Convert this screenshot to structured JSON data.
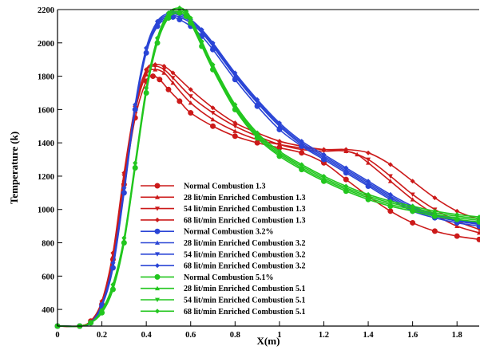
{
  "chart_data": {
    "type": "line",
    "title": "",
    "xlabel": "X(m)",
    "ylabel": "Temperature (k)",
    "xlim": [
      0,
      1.9
    ],
    "ylim": [
      300,
      2200
    ],
    "x_ticks": [
      0,
      0.2,
      0.4,
      0.6,
      0.8,
      1,
      1.2,
      1.4,
      1.6,
      1.8
    ],
    "x_tick_labels": [
      "0",
      "0.2",
      "0.4",
      "0.6",
      "0.8",
      "1",
      "1.2",
      "1.4",
      "1.6",
      "1.8"
    ],
    "y_ticks": [
      400,
      600,
      800,
      1000,
      1200,
      1400,
      1600,
      1800,
      2000,
      2200
    ],
    "y_tick_labels": [
      "400",
      "600",
      "800",
      "1000",
      "1200",
      "1400",
      "1600",
      "1800",
      "2000",
      "2200"
    ],
    "grid": false,
    "legend_position": "bottom-left",
    "series": [
      {
        "name": "Normal Combustion  1.3",
        "color": "#cc1a1a",
        "marker": "circle",
        "x": [
          0,
          0.1,
          0.15,
          0.2,
          0.25,
          0.3,
          0.35,
          0.4,
          0.43,
          0.46,
          0.5,
          0.55,
          0.6,
          0.7,
          0.8,
          0.9,
          1.0,
          1.1,
          1.2,
          1.3,
          1.4,
          1.5,
          1.6,
          1.7,
          1.8,
          1.9
        ],
        "y": [
          300,
          300,
          330,
          430,
          700,
          1150,
          1550,
          1770,
          1800,
          1780,
          1720,
          1650,
          1580,
          1500,
          1440,
          1400,
          1370,
          1340,
          1280,
          1180,
          1080,
          990,
          920,
          870,
          840,
          820
        ]
      },
      {
        "name": "28 lit/min Enriched Combustion 1.3",
        "color": "#cc1a1a",
        "marker": "triangle-up",
        "x": [
          0,
          0.1,
          0.15,
          0.2,
          0.25,
          0.3,
          0.35,
          0.4,
          0.44,
          0.48,
          0.52,
          0.6,
          0.7,
          0.8,
          0.9,
          1.0,
          1.1,
          1.2,
          1.3,
          1.35,
          1.4,
          1.5,
          1.6,
          1.7,
          1.8,
          1.9
        ],
        "y": [
          300,
          300,
          330,
          440,
          720,
          1180,
          1590,
          1810,
          1840,
          1820,
          1760,
          1640,
          1540,
          1470,
          1420,
          1390,
          1370,
          1360,
          1350,
          1330,
          1280,
          1170,
          1060,
          970,
          900,
          860
        ]
      },
      {
        "name": "54 lit/min Enriched Combustion 1.3",
        "color": "#cc1a1a",
        "marker": "triangle-down",
        "x": [
          0,
          0.1,
          0.15,
          0.2,
          0.25,
          0.3,
          0.35,
          0.4,
          0.44,
          0.48,
          0.52,
          0.6,
          0.7,
          0.8,
          0.9,
          1.0,
          1.1,
          1.2,
          1.3,
          1.4,
          1.5,
          1.6,
          1.7,
          1.8,
          1.9
        ],
        "y": [
          300,
          300,
          330,
          440,
          730,
          1200,
          1610,
          1830,
          1860,
          1840,
          1790,
          1680,
          1580,
          1500,
          1440,
          1390,
          1360,
          1350,
          1350,
          1300,
          1200,
          1090,
          1000,
          930,
          880
        ]
      },
      {
        "name": "68 lit/min Enriched Combustion 1.3",
        "color": "#cc1a1a",
        "marker": "diamond",
        "x": [
          0,
          0.1,
          0.15,
          0.2,
          0.25,
          0.3,
          0.35,
          0.4,
          0.44,
          0.48,
          0.52,
          0.6,
          0.7,
          0.8,
          0.9,
          1.0,
          1.1,
          1.2,
          1.3,
          1.4,
          1.5,
          1.6,
          1.7,
          1.8,
          1.9
        ],
        "y": [
          300,
          300,
          330,
          450,
          740,
          1220,
          1620,
          1840,
          1870,
          1860,
          1820,
          1720,
          1610,
          1520,
          1460,
          1410,
          1380,
          1360,
          1360,
          1340,
          1270,
          1170,
          1070,
          990,
          940
        ]
      },
      {
        "name": "Normal Combustion  3.2%",
        "color": "#2a45d6",
        "marker": "circle",
        "x": [
          0,
          0.1,
          0.15,
          0.2,
          0.25,
          0.3,
          0.35,
          0.4,
          0.45,
          0.5,
          0.52,
          0.55,
          0.6,
          0.65,
          0.7,
          0.8,
          0.9,
          1.0,
          1.1,
          1.2,
          1.3,
          1.4,
          1.5,
          1.6,
          1.7,
          1.8,
          1.9
        ],
        "y": [
          300,
          300,
          320,
          420,
          650,
          1100,
          1600,
          1940,
          2100,
          2150,
          2155,
          2140,
          2100,
          2040,
          1960,
          1780,
          1620,
          1480,
          1380,
          1300,
          1220,
          1140,
          1060,
          990,
          950,
          920,
          900
        ]
      },
      {
        "name": "28 lit/min Enriched Combustion 3.2",
        "color": "#2a45d6",
        "marker": "triangle-up",
        "x": [
          0,
          0.1,
          0.15,
          0.2,
          0.25,
          0.3,
          0.35,
          0.4,
          0.45,
          0.5,
          0.52,
          0.55,
          0.6,
          0.65,
          0.7,
          0.8,
          0.9,
          1.0,
          1.1,
          1.2,
          1.3,
          1.4,
          1.5,
          1.6,
          1.7,
          1.8,
          1.9
        ],
        "y": [
          300,
          300,
          320,
          420,
          660,
          1110,
          1610,
          1950,
          2110,
          2160,
          2165,
          2155,
          2120,
          2060,
          1980,
          1800,
          1640,
          1500,
          1390,
          1310,
          1230,
          1150,
          1070,
          1000,
          960,
          930,
          910
        ]
      },
      {
        "name": "54 lit/min Enriched Combustion 3.2",
        "color": "#2a45d6",
        "marker": "triangle-down",
        "x": [
          0,
          0.1,
          0.15,
          0.2,
          0.25,
          0.3,
          0.35,
          0.4,
          0.45,
          0.5,
          0.52,
          0.55,
          0.6,
          0.65,
          0.7,
          0.8,
          0.9,
          1.0,
          1.1,
          1.2,
          1.3,
          1.4,
          1.5,
          1.6,
          1.7,
          1.8,
          1.9
        ],
        "y": [
          300,
          300,
          320,
          430,
          670,
          1120,
          1620,
          1960,
          2120,
          2170,
          2175,
          2165,
          2130,
          2070,
          1990,
          1810,
          1650,
          1510,
          1400,
          1320,
          1240,
          1160,
          1080,
          1010,
          965,
          935,
          915
        ]
      },
      {
        "name": "68 lit/min Enriched Combustion 3.2",
        "color": "#2a45d6",
        "marker": "diamond",
        "x": [
          0,
          0.1,
          0.15,
          0.2,
          0.25,
          0.3,
          0.35,
          0.4,
          0.45,
          0.5,
          0.52,
          0.55,
          0.6,
          0.65,
          0.7,
          0.8,
          0.9,
          1.0,
          1.1,
          1.2,
          1.3,
          1.4,
          1.5,
          1.6,
          1.7,
          1.8,
          1.9
        ],
        "y": [
          300,
          300,
          320,
          430,
          680,
          1130,
          1630,
          1970,
          2130,
          2180,
          2185,
          2175,
          2140,
          2080,
          2000,
          1820,
          1660,
          1520,
          1410,
          1330,
          1250,
          1170,
          1090,
          1020,
          970,
          940,
          920
        ]
      },
      {
        "name": "Normal Combustion  5.1%",
        "color": "#22c61e",
        "marker": "circle",
        "x": [
          0,
          0.1,
          0.15,
          0.2,
          0.25,
          0.3,
          0.35,
          0.4,
          0.45,
          0.5,
          0.55,
          0.58,
          0.6,
          0.65,
          0.7,
          0.8,
          0.9,
          1.0,
          1.1,
          1.2,
          1.3,
          1.4,
          1.5,
          1.6,
          1.7,
          1.8,
          1.9
        ],
        "y": [
          300,
          300,
          320,
          380,
          520,
          800,
          1250,
          1700,
          2000,
          2150,
          2180,
          2160,
          2120,
          1980,
          1840,
          1600,
          1430,
          1320,
          1240,
          1170,
          1110,
          1060,
          1020,
          990,
          960,
          940,
          925
        ]
      },
      {
        "name": "28 lit/min Enriched Combustion 5.1",
        "color": "#22c61e",
        "marker": "triangle-up",
        "x": [
          0,
          0.1,
          0.15,
          0.2,
          0.25,
          0.3,
          0.35,
          0.4,
          0.45,
          0.5,
          0.55,
          0.58,
          0.6,
          0.65,
          0.7,
          0.8,
          0.9,
          1.0,
          1.1,
          1.2,
          1.3,
          1.4,
          1.5,
          1.6,
          1.7,
          1.8,
          1.9
        ],
        "y": [
          300,
          300,
          320,
          385,
          530,
          810,
          1260,
          1710,
          2010,
          2160,
          2190,
          2170,
          2130,
          1990,
          1850,
          1610,
          1440,
          1330,
          1250,
          1180,
          1120,
          1070,
          1030,
          1000,
          970,
          950,
          935
        ]
      },
      {
        "name": "54 lit/min Enriched Combustion 5.1",
        "color": "#22c61e",
        "marker": "triangle-down",
        "x": [
          0,
          0.1,
          0.15,
          0.2,
          0.25,
          0.3,
          0.35,
          0.4,
          0.45,
          0.5,
          0.55,
          0.58,
          0.6,
          0.65,
          0.7,
          0.8,
          0.9,
          1.0,
          1.1,
          1.2,
          1.3,
          1.4,
          1.5,
          1.6,
          1.7,
          1.8,
          1.9
        ],
        "y": [
          300,
          300,
          320,
          390,
          540,
          820,
          1270,
          1720,
          2020,
          2170,
          2200,
          2180,
          2140,
          2000,
          1860,
          1620,
          1450,
          1340,
          1260,
          1190,
          1130,
          1080,
          1040,
          1010,
          980,
          960,
          945
        ]
      },
      {
        "name": "68 lit/min Enriched Combustion 5.1",
        "color": "#22c61e",
        "marker": "diamond",
        "x": [
          0,
          0.1,
          0.15,
          0.2,
          0.25,
          0.3,
          0.35,
          0.4,
          0.45,
          0.5,
          0.55,
          0.58,
          0.6,
          0.65,
          0.7,
          0.8,
          0.9,
          1.0,
          1.1,
          1.2,
          1.3,
          1.4,
          1.5,
          1.6,
          1.7,
          1.8,
          1.9
        ],
        "y": [
          300,
          300,
          320,
          395,
          550,
          830,
          1280,
          1730,
          2030,
          2180,
          2210,
          2190,
          2150,
          2010,
          1870,
          1630,
          1460,
          1350,
          1270,
          1200,
          1140,
          1090,
          1050,
          1020,
          990,
          970,
          955
        ]
      }
    ]
  }
}
